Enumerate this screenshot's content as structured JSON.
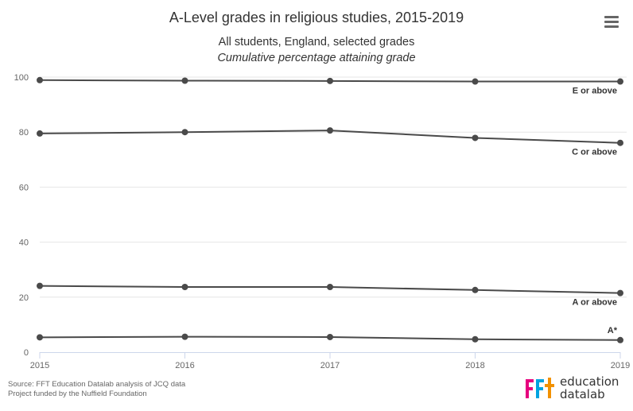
{
  "chart_data": {
    "type": "line",
    "title": "A-Level grades in religious studies, 2015-2019",
    "subtitle": "All students, England, selected grades",
    "subtitle_italic": "Cumulative percentage attaining grade",
    "x": [
      2015,
      2016,
      2017,
      2018,
      2019
    ],
    "ylim": [
      0,
      100
    ],
    "yticks": [
      0,
      20,
      40,
      60,
      80,
      100
    ],
    "grid": true,
    "series": [
      {
        "name": "E or above",
        "values": [
          98.9,
          98.7,
          98.6,
          98.4,
          98.4
        ]
      },
      {
        "name": "C or above",
        "values": [
          79.5,
          80.0,
          80.6,
          77.9,
          76.1
        ]
      },
      {
        "name": "A or above",
        "values": [
          24.1,
          23.7,
          23.7,
          22.6,
          21.5
        ]
      },
      {
        "name": "A*",
        "values": [
          5.4,
          5.6,
          5.5,
          4.7,
          4.4
        ]
      }
    ],
    "line_color": "#4a4a4a"
  },
  "source": {
    "line1": "Source: FFT Education Datalab analysis of JCQ data",
    "line2": "Project funded by the Nuffield Foundation"
  },
  "logo": {
    "mark": "fft",
    "word1": "education",
    "word2": "datalab",
    "colors": [
      "#e6007e",
      "#00a3e0",
      "#f29100"
    ]
  },
  "menu_icon": "hamburger-menu-icon"
}
